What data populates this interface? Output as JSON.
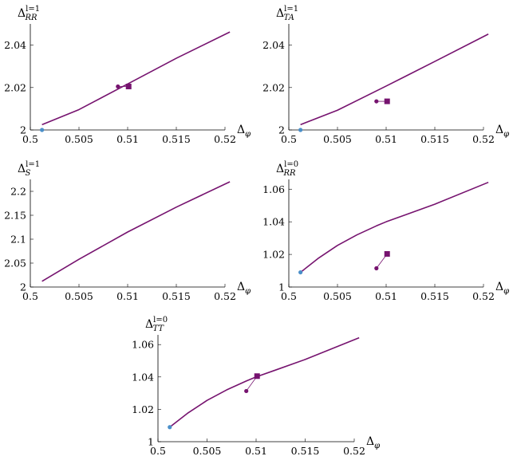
{
  "chart_data": [
    {
      "type": "line",
      "ylabel": {
        "base": "Δ",
        "sub": "RR",
        "sup": "l=1"
      },
      "xlabel": {
        "base": "Δ",
        "sub": "φ"
      },
      "xlim": [
        0.5,
        0.52
      ],
      "ylim": [
        2,
        2.05
      ],
      "xticks": [
        "0.5",
        "0.505",
        "0.51",
        "0.515",
        "0.52"
      ],
      "yticks": [
        "2",
        "2.02",
        "2.04"
      ],
      "yticks_values": [
        2,
        2.02,
        2.04
      ],
      "xticks_values": [
        0.5,
        0.505,
        0.51,
        0.515,
        0.52
      ],
      "series": [
        {
          "kind": "line",
          "color": "#76136f",
          "x": [
            0.5012,
            0.505,
            0.51,
            0.515,
            0.5205
          ],
          "y": [
            2.0025,
            2.0096,
            2.0217,
            2.0338,
            2.0462
          ]
        },
        {
          "kind": "point",
          "marker": "circle",
          "color": "#4a8fc9",
          "x": [
            0.5012
          ],
          "y": [
            2.0
          ]
        },
        {
          "kind": "segment",
          "color": "#76136f",
          "x": [
            0.509,
            0.5101
          ],
          "y": [
            2.0205,
            2.0205
          ]
        },
        {
          "kind": "point",
          "marker": "circle",
          "color": "#76136f",
          "x": [
            0.509
          ],
          "y": [
            2.0205
          ]
        },
        {
          "kind": "point",
          "marker": "square",
          "color": "#76136f",
          "x": [
            0.5101
          ],
          "y": [
            2.0205
          ]
        }
      ]
    },
    {
      "type": "line",
      "ylabel": {
        "base": "Δ",
        "sub": "TA",
        "sup": "l=1"
      },
      "xlabel": {
        "base": "Δ",
        "sub": "φ"
      },
      "xlim": [
        0.5,
        0.52
      ],
      "ylim": [
        2,
        2.05
      ],
      "xticks": [
        "0.5",
        "0.505",
        "0.51",
        "0.515",
        "0.52"
      ],
      "yticks": [
        "2",
        "2.02",
        "2.04"
      ],
      "yticks_values": [
        2,
        2.02,
        2.04
      ],
      "xticks_values": [
        0.5,
        0.505,
        0.51,
        0.515,
        0.52
      ],
      "series": [
        {
          "kind": "line",
          "color": "#76136f",
          "x": [
            0.5012,
            0.505,
            0.51,
            0.515,
            0.5205
          ],
          "y": [
            2.0025,
            2.0093,
            2.0207,
            2.0323,
            2.0452
          ]
        },
        {
          "kind": "point",
          "marker": "circle",
          "color": "#4a8fc9",
          "x": [
            0.5012
          ],
          "y": [
            2.0
          ]
        },
        {
          "kind": "segment",
          "color": "#76136f",
          "x": [
            0.509,
            0.5101
          ],
          "y": [
            2.0135,
            2.0135
          ]
        },
        {
          "kind": "point",
          "marker": "circle",
          "color": "#76136f",
          "x": [
            0.509
          ],
          "y": [
            2.0135
          ]
        },
        {
          "kind": "point",
          "marker": "square",
          "color": "#76136f",
          "x": [
            0.5101
          ],
          "y": [
            2.0135
          ]
        }
      ]
    },
    {
      "type": "line",
      "ylabel": {
        "base": "Δ",
        "sub": "S",
        "sup": "l=1"
      },
      "xlabel": {
        "base": "Δ",
        "sub": "φ"
      },
      "xlim": [
        0.5,
        0.52
      ],
      "ylim": [
        2,
        2.225
      ],
      "xticks": [
        "0.5",
        "0.505",
        "0.51",
        "0.515",
        "0.52"
      ],
      "yticks": [
        "2",
        "2.05",
        "2.1",
        "2.15",
        "2.2"
      ],
      "yticks_values": [
        2,
        2.05,
        2.1,
        2.15,
        2.2
      ],
      "xticks_values": [
        0.5,
        0.505,
        0.51,
        0.515,
        0.52
      ],
      "series": [
        {
          "kind": "line",
          "color": "#76136f",
          "x": [
            0.5012,
            0.505,
            0.51,
            0.515,
            0.5205
          ],
          "y": [
            2.012,
            2.058,
            2.115,
            2.167,
            2.22
          ]
        }
      ]
    },
    {
      "type": "line",
      "ylabel": {
        "base": "Δ",
        "sub": "RR",
        "sup": "l=0"
      },
      "xlabel": {
        "base": "Δ",
        "sub": "φ"
      },
      "xlim": [
        0.5,
        0.52
      ],
      "ylim": [
        1,
        1.066
      ],
      "xticks": [
        "0.5",
        "0.505",
        "0.51",
        "0.515",
        "0.52"
      ],
      "yticks": [
        "1",
        "1.02",
        "1.04",
        "1.06"
      ],
      "yticks_values": [
        1,
        1.02,
        1.04,
        1.06
      ],
      "xticks_values": [
        0.5,
        0.505,
        0.51,
        0.515,
        0.52
      ],
      "series": [
        {
          "kind": "line",
          "color": "#76136f",
          "x": [
            0.5012,
            0.503,
            0.505,
            0.507,
            0.509,
            0.51,
            0.512,
            0.515,
            0.5205
          ],
          "y": [
            1.009,
            1.0175,
            1.0255,
            1.032,
            1.0375,
            1.04,
            1.0443,
            1.0508,
            1.0642
          ]
        },
        {
          "kind": "point",
          "marker": "circle",
          "color": "#4a8fc9",
          "x": [
            0.5012
          ],
          "y": [
            1.009
          ]
        },
        {
          "kind": "segment",
          "color": "#76136f",
          "x": [
            0.509,
            0.5101
          ],
          "y": [
            1.0115,
            1.0203
          ]
        },
        {
          "kind": "point",
          "marker": "circle",
          "color": "#76136f",
          "x": [
            0.509
          ],
          "y": [
            1.0115
          ]
        },
        {
          "kind": "point",
          "marker": "square",
          "color": "#76136f",
          "x": [
            0.5101
          ],
          "y": [
            1.0203
          ]
        }
      ]
    },
    {
      "type": "line",
      "ylabel": {
        "base": "Δ",
        "sub": "TT",
        "sup": "l=0"
      },
      "xlabel": {
        "base": "Δ",
        "sub": "φ"
      },
      "xlim": [
        0.5,
        0.52
      ],
      "ylim": [
        1,
        1.066
      ],
      "xticks": [
        "0.5",
        "0.505",
        "0.51",
        "0.515",
        "0.52"
      ],
      "yticks": [
        "1",
        "1.02",
        "1.04",
        "1.06"
      ],
      "yticks_values": [
        1,
        1.02,
        1.04,
        1.06
      ],
      "xticks_values": [
        0.5,
        0.505,
        0.51,
        0.515,
        0.52
      ],
      "series": [
        {
          "kind": "line",
          "color": "#76136f",
          "x": [
            0.5012,
            0.503,
            0.505,
            0.507,
            0.509,
            0.51,
            0.512,
            0.515,
            0.5205
          ],
          "y": [
            1.009,
            1.0175,
            1.0255,
            1.032,
            1.0375,
            1.04,
            1.0443,
            1.0508,
            1.0642
          ]
        },
        {
          "kind": "point",
          "marker": "circle",
          "color": "#4a8fc9",
          "x": [
            0.5012
          ],
          "y": [
            1.009
          ]
        },
        {
          "kind": "segment",
          "color": "#76136f",
          "x": [
            0.509,
            0.5101
          ],
          "y": [
            1.0313,
            1.0405
          ]
        },
        {
          "kind": "point",
          "marker": "circle",
          "color": "#76136f",
          "x": [
            0.509
          ],
          "y": [
            1.0313
          ]
        },
        {
          "kind": "point",
          "marker": "square",
          "color": "#76136f",
          "x": [
            0.5101
          ],
          "y": [
            1.0405
          ]
        }
      ]
    }
  ]
}
